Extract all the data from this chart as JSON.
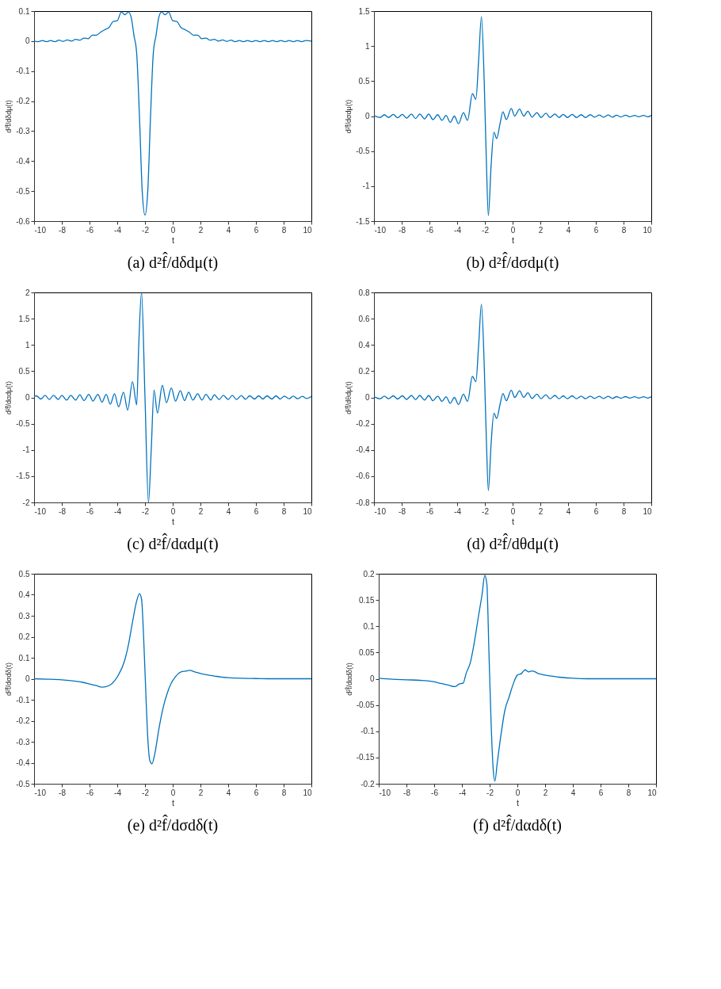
{
  "chart_data": [
    {
      "type": "line",
      "title": "(a) d²f̂/dδdμ(t)",
      "xlabel": "t",
      "ylabel": "d²f̂/dδdμ(t)",
      "color": "#0072bd",
      "xlim": [
        -10,
        10
      ],
      "xticks": [
        -10,
        -8,
        -6,
        -4,
        -2,
        0,
        2,
        4,
        6,
        8,
        10
      ],
      "ylim": [
        -0.6,
        0.1
      ],
      "yticks": [
        -0.6,
        -0.5,
        -0.4,
        -0.3,
        -0.2,
        -0.1,
        0,
        0.1
      ],
      "x": [
        -10,
        -9.7,
        -9.4,
        -9.1,
        -8.8,
        -8.5,
        -8.2,
        -7.9,
        -7.6,
        -7.3,
        -7.0,
        -6.7,
        -6.4,
        -6.1,
        -5.8,
        -5.5,
        -5.2,
        -4.9,
        -4.6,
        -4.3,
        -4.0,
        -3.7,
        -3.45,
        -3.2,
        -3.0,
        -2.8,
        -2.6,
        -2.4,
        -2.2,
        -2.0,
        -1.8,
        -1.6,
        -1.4,
        -1.2,
        -1.0,
        -0.8,
        -0.55,
        -0.3,
        0,
        0.3,
        0.6,
        0.9,
        1.2,
        1.5,
        1.8,
        2.1,
        2.4,
        2.7,
        3.0,
        3.3,
        3.6,
        3.9,
        4.2,
        4.5,
        4.8,
        5.1,
        5.4,
        5.7,
        6.0,
        6.3,
        6.6,
        6.9,
        7.2,
        7.5,
        7.8,
        8.1,
        8.4,
        8.7,
        9.0,
        9.3,
        9.6,
        10
      ],
      "values": [
        0,
        -0.002,
        0.002,
        -0.002,
        0.002,
        -0.002,
        0.003,
        -0.001,
        0.004,
        0,
        0.006,
        0.003,
        0.01,
        0.008,
        0.02,
        0.02,
        0.03,
        0.038,
        0.045,
        0.065,
        0.068,
        0.097,
        0.088,
        0.097,
        0.08,
        0.02,
        -0.04,
        -0.25,
        -0.5,
        -0.58,
        -0.5,
        -0.25,
        -0.04,
        0.02,
        0.08,
        0.097,
        0.088,
        0.097,
        0.068,
        0.065,
        0.045,
        0.038,
        0.03,
        0.02,
        0.02,
        0.008,
        0.01,
        0.003,
        0.006,
        0,
        0.004,
        -0.001,
        0.003,
        -0.002,
        0.002,
        -0.002,
        0.002,
        -0.002,
        0.002,
        -0.002,
        0.002,
        -0.002,
        0.002,
        -0.002,
        0.002,
        -0.002,
        0.002,
        -0.002,
        0.002,
        -0.002,
        0.002,
        0
      ]
    },
    {
      "type": "line",
      "title": "(b) d²f̂/dσdμ(t)",
      "xlabel": "t",
      "ylabel": "d²f̂/dσdμ(t)",
      "color": "#0072bd",
      "xlim": [
        -10,
        10
      ],
      "xticks": [
        -10,
        -8,
        -6,
        -4,
        -2,
        0,
        2,
        4,
        6,
        8,
        10
      ],
      "ylim": [
        -1.5,
        1.5
      ],
      "yticks": [
        -1.5,
        -1,
        -0.5,
        0,
        0.5,
        1,
        1.5
      ],
      "x": [
        -10,
        -9.55,
        -9.25,
        -8.95,
        -8.6,
        -8.3,
        -7.95,
        -7.65,
        -7.3,
        -7.0,
        -6.7,
        -6.35,
        -6.05,
        -5.75,
        -5.4,
        -5.1,
        -4.8,
        -4.5,
        -4.2,
        -3.9,
        -3.55,
        -3.25,
        -2.9,
        -2.65,
        -2.45,
        -2.25,
        -2.05,
        -1.9,
        -1.75,
        -1.55,
        -1.35,
        -1.15,
        -0.9,
        -0.7,
        -0.45,
        -0.1,
        0.15,
        0.5,
        0.8,
        1.1,
        1.4,
        1.75,
        2.05,
        2.4,
        2.7,
        3.05,
        3.35,
        3.65,
        3.95,
        4.3,
        4.6,
        4.95,
        5.25,
        5.6,
        5.9,
        6.25,
        6.55,
        6.9,
        7.2,
        7.5,
        7.8,
        8.15,
        8.45,
        8.8,
        9.1,
        9.45,
        9.75,
        10
      ],
      "values": [
        0.01,
        -0.02,
        0.02,
        -0.02,
        0.025,
        -0.025,
        0.025,
        -0.03,
        0.03,
        -0.035,
        0.03,
        -0.04,
        0.03,
        -0.05,
        0.02,
        -0.06,
        0.01,
        -0.09,
        0,
        -0.11,
        0.05,
        -0.06,
        0.32,
        0.24,
        0.8,
        1.42,
        0.5,
        -0.6,
        -1.42,
        -0.7,
        -0.23,
        -0.32,
        -0.1,
        0.06,
        -0.05,
        0.11,
        0,
        0.1,
        0,
        0.07,
        -0.015,
        0.05,
        -0.02,
        0.04,
        -0.02,
        0.03,
        -0.02,
        0.025,
        -0.02,
        0.025,
        -0.02,
        0.02,
        -0.02,
        0.02,
        -0.015,
        0.015,
        -0.015,
        0.015,
        -0.015,
        0.012,
        -0.012,
        0.012,
        -0.01,
        0.01,
        -0.01,
        0.01,
        -0.01,
        0.01
      ]
    },
    {
      "type": "line",
      "title": "(c) d²f̂/dαdμ(t)",
      "xlabel": "t",
      "ylabel": "d²f̂/dαdμ(t)",
      "color": "#0072bd",
      "xlim": [
        -10,
        10
      ],
      "xticks": [
        -10,
        -8,
        -6,
        -4,
        -2,
        0,
        2,
        4,
        6,
        8,
        10
      ],
      "ylim": [
        -2,
        2
      ],
      "yticks": [
        -2,
        -1.5,
        -1,
        -0.5,
        0,
        0.5,
        1,
        1.5,
        2
      ],
      "x": [
        -10,
        -9.85,
        -9.5,
        -9.2,
        -8.9,
        -8.6,
        -8.25,
        -8.0,
        -7.65,
        -7.35,
        -7.0,
        -6.7,
        -6.4,
        -6.05,
        -5.75,
        -5.4,
        -5.1,
        -4.8,
        -4.5,
        -4.2,
        -3.9,
        -3.55,
        -3.25,
        -2.9,
        -2.6,
        -2.45,
        -2.25,
        -2.0,
        -1.75,
        -1.55,
        -1.35,
        -1.1,
        -0.75,
        -0.45,
        -0.1,
        0.2,
        0.55,
        0.85,
        1.15,
        1.45,
        1.8,
        2.1,
        2.4,
        2.75,
        3.0,
        3.35,
        3.65,
        4.0,
        4.3,
        4.6,
        4.95,
        5.25,
        5.55,
        5.9,
        6.2,
        6.5,
        6.8,
        7.15,
        7.45,
        7.75,
        8.05,
        8.4,
        8.7,
        9.0,
        9.35,
        9.65,
        10
      ],
      "values": [
        0.02,
        0.03,
        -0.03,
        0.04,
        -0.04,
        0.04,
        -0.04,
        0.04,
        -0.05,
        0.04,
        -0.05,
        0.05,
        -0.06,
        0.06,
        -0.07,
        0.06,
        -0.09,
        0.06,
        -0.13,
        0.07,
        -0.18,
        0.1,
        -0.24,
        0.3,
        -0.14,
        1.0,
        2.0,
        0,
        -2.0,
        -1.0,
        0.14,
        -0.3,
        0.23,
        -0.1,
        0.18,
        -0.07,
        0.13,
        -0.06,
        0.1,
        -0.05,
        0.07,
        -0.05,
        0.06,
        -0.05,
        0.05,
        -0.04,
        0.04,
        -0.04,
        0.04,
        -0.04,
        0.035,
        -0.035,
        0.03,
        -0.03,
        0.03,
        -0.03,
        0.03,
        -0.03,
        0.03,
        -0.03,
        0.025,
        -0.025,
        0.025,
        -0.025,
        0.02,
        -0.02,
        0.02
      ]
    },
    {
      "type": "line",
      "title": "(d) d²f̂/dθdμ(t)",
      "xlabel": "t",
      "ylabel": "d²f̂/dθdμ(t)",
      "color": "#0072bd",
      "xlim": [
        -10,
        10
      ],
      "xticks": [
        -10,
        -8,
        -6,
        -4,
        -2,
        0,
        2,
        4,
        6,
        8,
        10
      ],
      "ylim": [
        -0.8,
        0.8
      ],
      "yticks": [
        -0.8,
        -0.6,
        -0.4,
        -0.2,
        0,
        0.2,
        0.4,
        0.6,
        0.8
      ],
      "x": [
        -10,
        -9.55,
        -9.25,
        -8.95,
        -8.6,
        -8.3,
        -7.95,
        -7.65,
        -7.3,
        -7.0,
        -6.7,
        -6.35,
        -6.05,
        -5.75,
        -5.4,
        -5.1,
        -4.8,
        -4.5,
        -4.2,
        -3.9,
        -3.55,
        -3.25,
        -2.9,
        -2.65,
        -2.45,
        -2.25,
        -2.05,
        -1.9,
        -1.75,
        -1.55,
        -1.35,
        -1.15,
        -0.9,
        -0.7,
        -0.45,
        -0.1,
        0.15,
        0.5,
        0.8,
        1.1,
        1.4,
        1.75,
        2.05,
        2.4,
        2.7,
        3.05,
        3.35,
        3.65,
        3.95,
        4.3,
        4.6,
        4.95,
        5.25,
        5.6,
        5.9,
        6.25,
        6.55,
        6.9,
        7.2,
        7.5,
        7.8,
        8.15,
        8.45,
        8.8,
        9.1,
        9.45,
        9.75,
        10
      ],
      "values": [
        0.005,
        -0.01,
        0.01,
        -0.01,
        0.012,
        -0.012,
        0.012,
        -0.015,
        0.015,
        -0.017,
        0.015,
        -0.02,
        0.015,
        -0.025,
        0.01,
        -0.03,
        0.005,
        -0.045,
        0,
        -0.055,
        0.025,
        -0.03,
        0.16,
        0.12,
        0.4,
        0.71,
        0.25,
        -0.3,
        -0.71,
        -0.35,
        -0.12,
        -0.16,
        -0.05,
        0.03,
        -0.025,
        0.055,
        0,
        0.05,
        0,
        0.035,
        -0.008,
        0.025,
        -0.01,
        0.02,
        -0.01,
        0.015,
        -0.01,
        0.012,
        -0.01,
        0.012,
        -0.01,
        0.01,
        -0.01,
        0.01,
        -0.008,
        0.008,
        -0.008,
        0.008,
        -0.008,
        0.006,
        -0.006,
        0.006,
        -0.005,
        0.005,
        -0.005,
        0.005,
        -0.005,
        0.005
      ]
    },
    {
      "type": "line",
      "title": "(e) d²f̂/dσdδ(t)",
      "xlabel": "t",
      "ylabel": "d²f̂/dσdδ(t)",
      "color": "#0072bd",
      "xlim": [
        -10,
        10
      ],
      "xticks": [
        -10,
        -8,
        -6,
        -4,
        -2,
        0,
        2,
        4,
        6,
        8,
        10
      ],
      "ylim": [
        -0.5,
        0.5
      ],
      "yticks": [
        -0.5,
        -0.4,
        -0.3,
        -0.2,
        -0.1,
        0,
        0.1,
        0.2,
        0.3,
        0.4,
        0.5
      ],
      "x": [
        -10,
        -9,
        -8,
        -7,
        -6.5,
        -6,
        -5.5,
        -5.1,
        -4.6,
        -4.2,
        -3.9,
        -3.5,
        -3.2,
        -2.9,
        -2.6,
        -2.4,
        -2.25,
        -2.1,
        -1.95,
        -1.8,
        -1.65,
        -1.5,
        -1.3,
        -1.0,
        -0.7,
        -0.4,
        -0.1,
        0.2,
        0.6,
        1.0,
        1.2,
        1.6,
        2.0,
        2.5,
        3.0,
        3.5,
        4,
        5,
        6,
        7,
        8,
        9,
        10
      ],
      "values": [
        0,
        -0.002,
        -0.005,
        -0.012,
        -0.017,
        -0.025,
        -0.033,
        -0.04,
        -0.033,
        -0.01,
        0.02,
        0.08,
        0.16,
        0.27,
        0.37,
        0.405,
        0.38,
        0.2,
        -0.05,
        -0.28,
        -0.39,
        -0.405,
        -0.36,
        -0.24,
        -0.14,
        -0.07,
        -0.02,
        0.01,
        0.033,
        0.037,
        0.04,
        0.033,
        0.025,
        0.018,
        0.013,
        0.008,
        0.005,
        0.002,
        0.001,
        0,
        0,
        0,
        0
      ]
    },
    {
      "type": "line",
      "title": "(f) d²f̂/dαdδ(t)",
      "xlabel": "t",
      "ylabel": "d²f̂/dαdδ(t)",
      "color": "#0072bd",
      "xlim": [
        -10,
        10
      ],
      "xticks": [
        -10,
        -8,
        -6,
        -4,
        -2,
        0,
        2,
        4,
        6,
        8,
        10
      ],
      "ylim": [
        -0.2,
        0.2
      ],
      "yticks": [
        -0.2,
        -0.15,
        -0.1,
        -0.05,
        0,
        0.05,
        0.1,
        0.15,
        0.2
      ],
      "x": [
        -10,
        -9,
        -8,
        -7,
        -6.5,
        -6,
        -5.5,
        -5,
        -4.5,
        -4.2,
        -3.9,
        -3.7,
        -3.4,
        -3.1,
        -2.8,
        -2.55,
        -2.35,
        -2.2,
        -2.05,
        -1.9,
        -1.75,
        -1.62,
        -1.45,
        -1.2,
        -0.9,
        -0.6,
        -0.3,
        0,
        0.3,
        0.55,
        0.8,
        1.1,
        1.5,
        2.0,
        2.5,
        3.0,
        4,
        5,
        6,
        7,
        8,
        9,
        10
      ],
      "values": [
        0.001,
        -0.001,
        -0.002,
        -0.003,
        -0.004,
        -0.006,
        -0.009,
        -0.012,
        -0.015,
        -0.01,
        -0.008,
        0.01,
        0.03,
        0.07,
        0.12,
        0.16,
        0.197,
        0.18,
        0.05,
        -0.08,
        -0.17,
        -0.195,
        -0.16,
        -0.11,
        -0.06,
        -0.035,
        -0.01,
        0.007,
        0.01,
        0.017,
        0.013,
        0.015,
        0.01,
        0.007,
        0.005,
        0.003,
        0.001,
        0,
        0,
        0,
        0,
        0,
        0
      ]
    }
  ]
}
